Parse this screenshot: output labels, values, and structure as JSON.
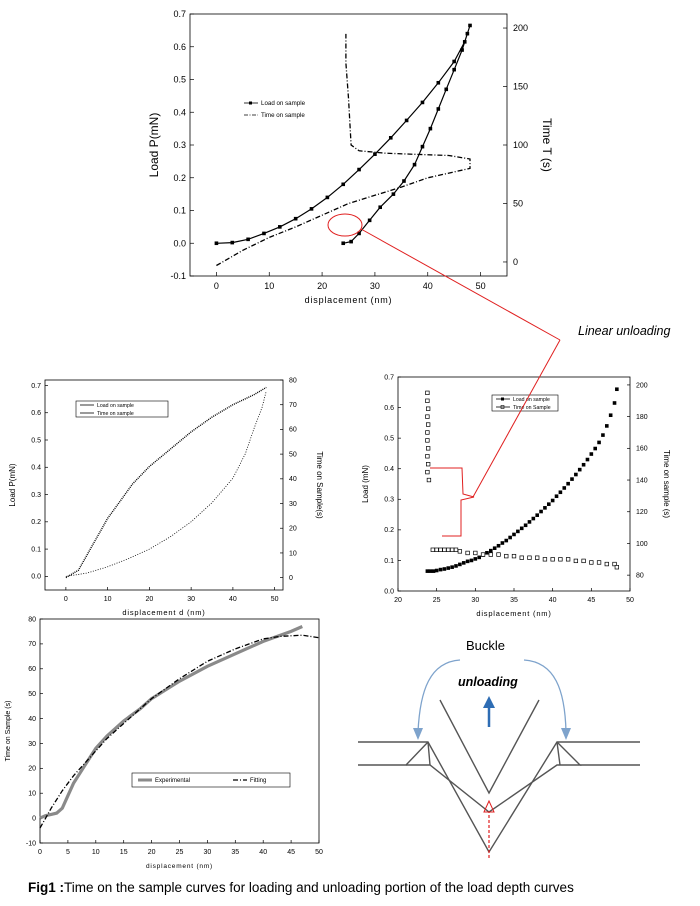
{
  "figure": {
    "caption_label": "Fig1 :",
    "caption_text": "Time  on the sample curves for loading and unloading portion of the load depth curves",
    "annotation_text": "Linear unloading"
  },
  "chart_data": [
    {
      "id": "top",
      "type": "scatter",
      "xlabel": "displacement (nm)",
      "ylabel": "Load P(mN)",
      "y2label": "Time T (s)",
      "xlim": [
        -5,
        55
      ],
      "ylim": [
        -0.1,
        0.7
      ],
      "y2lim": [
        -12,
        212
      ],
      "xticks": [
        0,
        10,
        20,
        30,
        40,
        50
      ],
      "yticks": [
        -0.1,
        0.0,
        0.1,
        0.2,
        0.3,
        0.4,
        0.5,
        0.6,
        0.7
      ],
      "y2ticks": [
        0,
        50,
        100,
        150,
        200
      ],
      "legend": [
        "Load on sample",
        "Time on sample"
      ],
      "series": [
        {
          "name": "Load on sample",
          "axis": "left",
          "style": "square",
          "points": [
            [
              0,
              0
            ],
            [
              3,
              0.002
            ],
            [
              6,
              0.012
            ],
            [
              9,
              0.03
            ],
            [
              12,
              0.05
            ],
            [
              15,
              0.075
            ],
            [
              18,
              0.105
            ],
            [
              21,
              0.14
            ],
            [
              24,
              0.18
            ],
            [
              27,
              0.225
            ],
            [
              30,
              0.272
            ],
            [
              33,
              0.322
            ],
            [
              36,
              0.375
            ],
            [
              39,
              0.43
            ],
            [
              42,
              0.49
            ],
            [
              45,
              0.555
            ],
            [
              47,
              0.615
            ],
            [
              48,
              0.665
            ],
            [
              47.5,
              0.64
            ],
            [
              46.5,
              0.59
            ],
            [
              45,
              0.53
            ],
            [
              43.5,
              0.47
            ],
            [
              42,
              0.41
            ],
            [
              40.5,
              0.35
            ],
            [
              39,
              0.295
            ],
            [
              37.5,
              0.24
            ],
            [
              35.5,
              0.19
            ],
            [
              33.5,
              0.15
            ],
            [
              31,
              0.11
            ],
            [
              29,
              0.07
            ],
            [
              27,
              0.03
            ],
            [
              25.5,
              0.005
            ],
            [
              24,
              0
            ]
          ]
        },
        {
          "name": "Time on sample",
          "axis": "right",
          "style": "dashdot",
          "points": [
            [
              0,
              -3
            ],
            [
              5,
              10
            ],
            [
              10,
              21
            ],
            [
              15,
              30
            ],
            [
              20,
              40
            ],
            [
              25,
              50
            ],
            [
              30,
              57
            ],
            [
              35,
              64
            ],
            [
              40,
              72
            ],
            [
              45,
              77
            ],
            [
              48,
              80
            ],
            [
              48,
              88
            ],
            [
              44,
              91
            ],
            [
              38,
              92
            ],
            [
              32,
              93
            ],
            [
              27,
              95
            ],
            [
              25.5,
              100
            ],
            [
              25,
              140
            ],
            [
              24.5,
              170
            ],
            [
              24.5,
              195
            ]
          ]
        }
      ],
      "highlight": {
        "x": 25,
        "y": 0.005
      }
    },
    {
      "id": "middle-left",
      "type": "scatter",
      "xlabel": "displacement  d  (nm)",
      "ylabel": "Load P(mN)",
      "y2label": "Time on Sample(s)",
      "xlim": [
        -5,
        52
      ],
      "ylim": [
        -0.05,
        0.72
      ],
      "y2lim": [
        -5,
        80
      ],
      "xticks": [
        0,
        10,
        20,
        30,
        40,
        50
      ],
      "yticks": [
        0.0,
        0.1,
        0.2,
        0.3,
        0.4,
        0.5,
        0.6,
        0.7
      ],
      "y2ticks": [
        0,
        10,
        20,
        30,
        40,
        50,
        60,
        70,
        80
      ],
      "legend": [
        "Load on sample",
        "Time on sample"
      ],
      "series": [
        {
          "name": "Load on sample",
          "axis": "left",
          "style": "thin",
          "points": [
            [
              0,
              0
            ],
            [
              5,
              0.012
            ],
            [
              10,
              0.035
            ],
            [
              15,
              0.065
            ],
            [
              20,
              0.1
            ],
            [
              25,
              0.145
            ],
            [
              30,
              0.2
            ],
            [
              35,
              0.27
            ],
            [
              40,
              0.36
            ],
            [
              43,
              0.45
            ],
            [
              45,
              0.54
            ],
            [
              47,
              0.62
            ],
            [
              48,
              0.68
            ]
          ]
        },
        {
          "name": "Time on sample",
          "axis": "right",
          "style": "dotted",
          "points": [
            [
              0,
              0
            ],
            [
              3,
              3
            ],
            [
              4,
              6
            ],
            [
              5,
              9
            ],
            [
              6,
              12
            ],
            [
              8,
              18
            ],
            [
              10,
              24
            ],
            [
              13,
              31
            ],
            [
              16,
              38
            ],
            [
              20,
              45
            ],
            [
              25,
              52
            ],
            [
              30,
              59
            ],
            [
              35,
              65
            ],
            [
              40,
              70
            ],
            [
              45,
              74
            ],
            [
              48,
              77
            ]
          ]
        }
      ]
    },
    {
      "id": "middle-right",
      "type": "scatter",
      "xlabel": "displacement (nm)",
      "ylabel": "Load (mN)",
      "y2label": "Time on sample (s)",
      "xlim": [
        20,
        50
      ],
      "ylim": [
        0.0,
        0.7
      ],
      "y2lim": [
        70,
        205
      ],
      "xticks": [
        20,
        25,
        30,
        35,
        40,
        45,
        50
      ],
      "yticks": [
        0.0,
        0.1,
        0.2,
        0.3,
        0.4,
        0.5,
        0.6,
        0.7
      ],
      "y2ticks": [
        80,
        100,
        120,
        140,
        160,
        180,
        200
      ],
      "legend": [
        "Load on sample",
        "Time on Sample"
      ],
      "series": [
        {
          "name": "Load on sample",
          "axis": "left",
          "style": "square",
          "points": [
            [
              23.8,
              0.065
            ],
            [
              24.2,
              0.065
            ],
            [
              24.6,
              0.065
            ],
            [
              25.0,
              0.067
            ],
            [
              25.5,
              0.07
            ],
            [
              26.0,
              0.072
            ],
            [
              26.5,
              0.075
            ],
            [
              27.0,
              0.078
            ],
            [
              27.5,
              0.082
            ],
            [
              28.0,
              0.087
            ],
            [
              28.5,
              0.092
            ],
            [
              29.0,
              0.097
            ],
            [
              29.5,
              0.1
            ],
            [
              30,
              0.105
            ],
            [
              30.5,
              0.11
            ],
            [
              31,
              0.118
            ],
            [
              31.5,
              0.125
            ],
            [
              32,
              0.132
            ],
            [
              32.5,
              0.14
            ],
            [
              33,
              0.148
            ],
            [
              33.5,
              0.157
            ],
            [
              34,
              0.165
            ],
            [
              34.5,
              0.175
            ],
            [
              35,
              0.185
            ],
            [
              35.5,
              0.195
            ],
            [
              36,
              0.205
            ],
            [
              36.5,
              0.215
            ],
            [
              37,
              0.226
            ],
            [
              37.5,
              0.237
            ],
            [
              38,
              0.248
            ],
            [
              38.5,
              0.26
            ],
            [
              39,
              0.272
            ],
            [
              39.5,
              0.284
            ],
            [
              40,
              0.296
            ],
            [
              40.5,
              0.31
            ],
            [
              41,
              0.323
            ],
            [
              41.5,
              0.337
            ],
            [
              42,
              0.351
            ],
            [
              42.5,
              0.366
            ],
            [
              43,
              0.381
            ],
            [
              43.5,
              0.397
            ],
            [
              44,
              0.413
            ],
            [
              44.5,
              0.43
            ],
            [
              45,
              0.448
            ],
            [
              45.5,
              0.466
            ],
            [
              46,
              0.486
            ],
            [
              46.5,
              0.51
            ],
            [
              47,
              0.54
            ],
            [
              47.5,
              0.575
            ],
            [
              48,
              0.615
            ],
            [
              48.3,
              0.66
            ]
          ]
        },
        {
          "name": "Time on Sample",
          "axis": "right",
          "style": "open-square",
          "points": [
            [
              23.8,
              195
            ],
            [
              23.8,
              190
            ],
            [
              23.9,
              185
            ],
            [
              23.8,
              180
            ],
            [
              23.9,
              175
            ],
            [
              23.8,
              170
            ],
            [
              23.8,
              165
            ],
            [
              23.9,
              160
            ],
            [
              23.8,
              155
            ],
            [
              23.9,
              150
            ],
            [
              23.8,
              145
            ],
            [
              24,
              140
            ],
            [
              24.5,
              96
            ],
            [
              25.0,
              96
            ],
            [
              25.5,
              96
            ],
            [
              26.0,
              96
            ],
            [
              26.5,
              96
            ],
            [
              27.0,
              96
            ],
            [
              27.5,
              96
            ],
            [
              28,
              95
            ],
            [
              29,
              94
            ],
            [
              30,
              94
            ],
            [
              31,
              93
            ],
            [
              32,
              93
            ],
            [
              33,
              93
            ],
            [
              34,
              92
            ],
            [
              35,
              92
            ],
            [
              36,
              91
            ],
            [
              37,
              91
            ],
            [
              38,
              91
            ],
            [
              39,
              90
            ],
            [
              40,
              90
            ],
            [
              41,
              90
            ],
            [
              42,
              90
            ],
            [
              43,
              89
            ],
            [
              44,
              89
            ],
            [
              45,
              88
            ],
            [
              46,
              88
            ],
            [
              47,
              87
            ],
            [
              48,
              87
            ],
            [
              48.3,
              85
            ]
          ]
        }
      ]
    },
    {
      "id": "bottom-left",
      "type": "line",
      "xlabel": "displacement (nm)",
      "ylabel": "Time on Sample (s)",
      "xlim": [
        0,
        50
      ],
      "ylim": [
        -10,
        80
      ],
      "xticks": [
        0,
        5,
        10,
        15,
        20,
        25,
        30,
        35,
        40,
        45,
        50
      ],
      "yticks": [
        -10,
        0,
        10,
        20,
        30,
        40,
        50,
        60,
        70,
        80
      ],
      "legend": [
        "Experimental",
        "Fitting"
      ],
      "series": [
        {
          "name": "Experimental",
          "style": "thick-gray",
          "points": [
            [
              0,
              0
            ],
            [
              1,
              1
            ],
            [
              2,
              1.5
            ],
            [
              3,
              2
            ],
            [
              4,
              4
            ],
            [
              5,
              9
            ],
            [
              6,
              14
            ],
            [
              8,
              21
            ],
            [
              10,
              28
            ],
            [
              12,
              33
            ],
            [
              15,
              39
            ],
            [
              18,
              44
            ],
            [
              20,
              48
            ],
            [
              25,
              55
            ],
            [
              30,
              61
            ],
            [
              35,
              66
            ],
            [
              40,
              71
            ],
            [
              45,
              75
            ],
            [
              47,
              77
            ]
          ]
        },
        {
          "name": "Fitting",
          "style": "dashdot",
          "points": [
            [
              0,
              -4
            ],
            [
              2,
              4
            ],
            [
              4,
              11
            ],
            [
              6,
              17
            ],
            [
              8,
              22
            ],
            [
              10,
              27
            ],
            [
              12,
              32
            ],
            [
              15,
              38
            ],
            [
              18,
              44
            ],
            [
              20,
              48
            ],
            [
              25,
              56
            ],
            [
              30,
              63
            ],
            [
              35,
              68
            ],
            [
              40,
              72
            ],
            [
              43,
              73
            ],
            [
              47,
              73.5
            ],
            [
              50,
              72.5
            ]
          ]
        }
      ]
    }
  ],
  "diagram": {
    "buckle_label": "Buckle",
    "unloading_label": "unloading"
  }
}
